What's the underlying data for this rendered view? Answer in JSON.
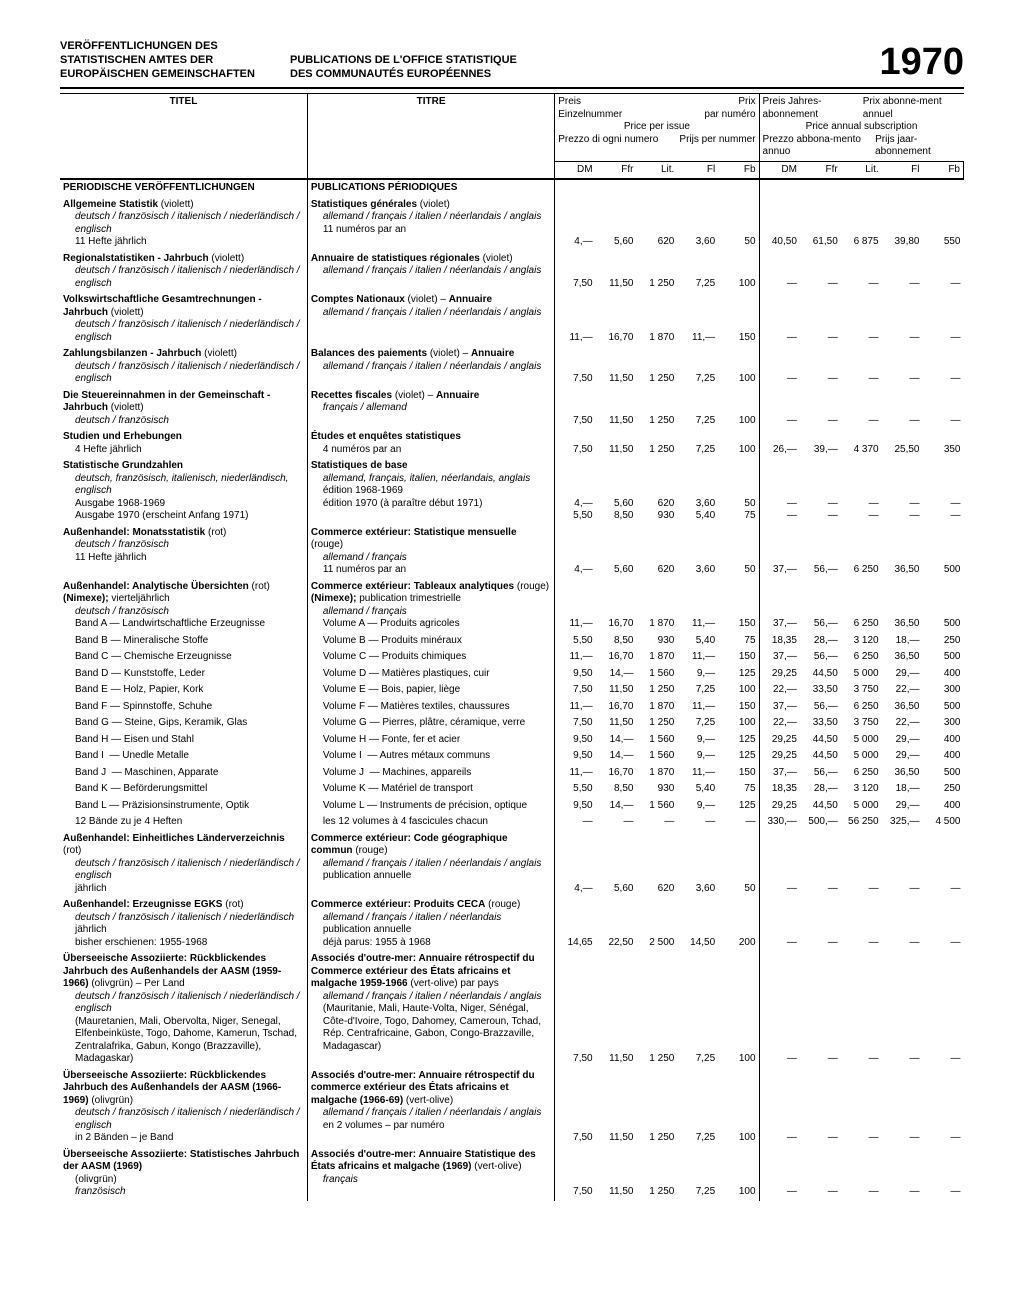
{
  "header": {
    "de": "VERÖFFENTLICHUNGEN DES STATISTISCHEN AMTES DER EUROPÄISCHEN GEMEINSCHAFTEN",
    "fr": "PUBLICATIONS DE L'OFFICE STATISTIQUE DES COMMUNAUTÉS EUROPÉENNES",
    "year": "1970"
  },
  "column_labels": {
    "titel": "TITEL",
    "titre": "TITRE",
    "price_issue_block": {
      "tl": "Preis",
      "tr": "Prix",
      "bl": "Einzelnummer",
      "br": "par numéro",
      "mid": "Price per issue",
      "bl2": "Prezzo di ogni numero",
      "br2": "Prijs per nummer"
    },
    "price_annual_block": {
      "tl": "Preis Jahres-abonnement",
      "tr": "Prix abonne-ment annuel",
      "mid": "Price annual subscription",
      "bl": "Prezzo abbona-mento annuo",
      "br": "Prijs jaar-abonnement"
    },
    "currencies": [
      "DM",
      "Ffr",
      "Lit.",
      "Fl",
      "Fb",
      "DM",
      "Ffr",
      "Lit.",
      "Fl",
      "Fb"
    ]
  },
  "section_heads": {
    "de": "PERIODISCHE VERÖFFENTLICHUNGEN",
    "fr": "PUBLICATIONS PÉRIODIQUES"
  },
  "rows": [
    {
      "type": "entry",
      "titel": "<b>Allgemeine Statistik</b> (violett)<span class='sub'>deutsch / französisch / italienisch / niederländisch / englisch</span><span class='sub2'>11 Hefte jährlich</span>",
      "titre": "<b>Statistiques générales</b> (violet)<span class='sub'>allemand / français / italien / néerlandais / anglais</span><span class='sub2'>11 numéros par an</span>",
      "p": [
        "4,—",
        "5,60",
        "620",
        "3,60",
        "50",
        "40,50",
        "61,50",
        "6 875",
        "39,80",
        "550"
      ]
    },
    {
      "type": "entry",
      "titel": "<b>Regionalstatistiken - Jahrbuch</b> (violett)<span class='sub'>deutsch / französisch / italienisch / niederländisch / englisch</span>",
      "titre": "<b>Annuaire de statistiques régionales</b> (violet)<span class='sub'>allemand / français / italien / néerlandais / anglais</span>",
      "p": [
        "7,50",
        "11,50",
        "1 250",
        "7,25",
        "100",
        "—",
        "—",
        "—",
        "—",
        "—"
      ]
    },
    {
      "type": "entry",
      "titel": "<b>Volkswirtschaftliche Gesamtrechnungen - Jahrbuch</b> (violett)<span class='sub'>deutsch / französisch / italienisch / niederländisch / englisch</span>",
      "titre": "<b>Comptes Nationaux</b> (violet) – <b>Annuaire</b><span class='sub'>allemand / français / italien / néerlandais / anglais</span>",
      "p": [
        "11,—",
        "16,70",
        "1 870",
        "11,—",
        "150",
        "—",
        "—",
        "—",
        "—",
        "—"
      ]
    },
    {
      "type": "entry",
      "titel": "<b>Zahlungsbilanzen - Jahrbuch</b> (violett)<span class='sub'>deutsch / französisch / italienisch / niederländisch / englisch</span>",
      "titre": "<b>Balances des paiements</b> (violet) – <b>Annuaire</b><span class='sub'>allemand / français / italien / néerlandais / anglais</span>",
      "p": [
        "7,50",
        "11,50",
        "1 250",
        "7,25",
        "100",
        "—",
        "—",
        "—",
        "—",
        "—"
      ]
    },
    {
      "type": "entry",
      "titel": "<b>Die Steuereinnahmen in der Gemeinschaft - Jahrbuch</b> (violett)<span class='sub'>deutsch / französisch</span>",
      "titre": "<b>Recettes fiscales</b> (violet) – <b>Annuaire</b><span class='sub'>français / allemand</span>",
      "p": [
        "7,50",
        "11,50",
        "1 250",
        "7,25",
        "100",
        "—",
        "—",
        "—",
        "—",
        "—"
      ]
    },
    {
      "type": "entry",
      "titel": "<b>Studien und Erhebungen</b><span class='sub2'>4 Hefte jährlich</span>",
      "titre": "<b>Études et enquêtes statistiques</b><span class='sub2'>4 numéros par an</span>",
      "p": [
        "7,50",
        "11,50",
        "1 250",
        "7,25",
        "100",
        "26,—",
        "39,—",
        "4 370",
        "25,50",
        "350"
      ]
    },
    {
      "type": "entry",
      "titel": "<b>Statistische Grundzahlen</b><span class='sub'>deutsch, französisch, italienisch, niederländisch, englisch</span><span class='sub2'>Ausgabe 1968-1969</span><span class='sub2'>Ausgabe 1970 (erscheint Anfang 1971)</span>",
      "titre": "<b>Statistiques de base</b><span class='sub'>allemand, français, italien, néerlandais, anglais</span><span class='sub2'>édition 1968-1969</span><span class='sub2'>édition 1970 (à paraître début 1971)</span>",
      "p": [
        "4,—<br>5,50",
        "5,60<br>8,50",
        "620<br>930",
        "3,60<br>5,40",
        "50<br>75",
        "—<br>—",
        "—<br>—",
        "—<br>—",
        "—<br>—",
        "—<br>—"
      ]
    },
    {
      "type": "entry",
      "titel": "<b>Außenhandel: Monatsstatistik</b> (rot)<span class='sub'>deutsch / französisch</span><span class='sub2'>11 Hefte jährlich</span>",
      "titre": "<b>Commerce extérieur: Statistique mensuelle</b> (rouge)<span class='sub'>allemand / français</span><span class='sub2'>11 numéros par an</span>",
      "p": [
        "4,—",
        "5,60",
        "620",
        "3,60",
        "50",
        "37,—",
        "56,—",
        "6 250",
        "36,50",
        "500"
      ]
    },
    {
      "type": "entry",
      "titel": "<b>Außenhandel: Analytische Übersichten</b> (rot) <b>(Nimexe);</b> vierteljährlich<span class='sub'>deutsch / französisch</span><span class='sub2'>Band A — Landwirtschaftliche Erzeugnisse</span>",
      "titre": "<b>Commerce extérieur: Tableaux analytiques</b> (rouge) <b>(Nimexe);</b> publication trimestrielle<span class='sub'>allemand / français</span><span class='sub2'>Volume A — Produits agricoles</span>",
      "p": [
        "11,—",
        "16,70",
        "1 870",
        "11,—",
        "150",
        "37,—",
        "56,—",
        "6 250",
        "36,50",
        "500"
      ]
    },
    {
      "type": "tight",
      "titel": "<span class='sub2'>Band B — Mineralische Stoffe</span>",
      "titre": "<span class='sub2'>Volume B — Produits minéraux</span>",
      "p": [
        "5,50",
        "8,50",
        "930",
        "5,40",
        "75",
        "18,35",
        "28,—",
        "3 120",
        "18,—",
        "250"
      ]
    },
    {
      "type": "tight",
      "titel": "<span class='sub2'>Band C — Chemische Erzeugnisse</span>",
      "titre": "<span class='sub2'>Volume C — Produits chimiques</span>",
      "p": [
        "11,—",
        "16,70",
        "1 870",
        "11,—",
        "150",
        "37,—",
        "56,—",
        "6 250",
        "36,50",
        "500"
      ]
    },
    {
      "type": "tight",
      "titel": "<span class='sub2'>Band D — Kunststoffe, Leder</span>",
      "titre": "<span class='sub2'>Volume D — Matières plastiques, cuir</span>",
      "p": [
        "9,50",
        "14,—",
        "1 560",
        "9,—",
        "125",
        "29,25",
        "44,50",
        "5 000",
        "29,—",
        "400"
      ]
    },
    {
      "type": "tight",
      "titel": "<span class='sub2'>Band E — Holz, Papier, Kork</span>",
      "titre": "<span class='sub2'>Volume E — Bois, papier, liège</span>",
      "p": [
        "7,50",
        "11,50",
        "1 250",
        "7,25",
        "100",
        "22,—",
        "33,50",
        "3 750",
        "22,—",
        "300"
      ]
    },
    {
      "type": "tight",
      "titel": "<span class='sub2'>Band F — Spinnstoffe, Schuhe</span>",
      "titre": "<span class='sub2'>Volume F — Matières textiles, chaussures</span>",
      "p": [
        "11,—",
        "16,70",
        "1 870",
        "11,—",
        "150",
        "37,—",
        "56,—",
        "6 250",
        "36,50",
        "500"
      ]
    },
    {
      "type": "tight",
      "titel": "<span class='sub2'>Band G — Steine, Gips, Keramik, Glas</span>",
      "titre": "<span class='sub2'>Volume G — Pierres, plâtre, céramique, verre</span>",
      "p": [
        "7,50",
        "11,50",
        "1 250",
        "7,25",
        "100",
        "22,—",
        "33,50",
        "3 750",
        "22,—",
        "300"
      ]
    },
    {
      "type": "tight",
      "titel": "<span class='sub2'>Band H — Eisen und Stahl</span>",
      "titre": "<span class='sub2'>Volume H — Fonte, fer et acier</span>",
      "p": [
        "9,50",
        "14,—",
        "1 560",
        "9,—",
        "125",
        "29,25",
        "44,50",
        "5 000",
        "29,—",
        "400"
      ]
    },
    {
      "type": "tight",
      "titel": "<span class='sub2'>Band I &nbsp;— Unedle Metalle</span>",
      "titre": "<span class='sub2'>Volume I &nbsp;— Autres métaux communs</span>",
      "p": [
        "9,50",
        "14,—",
        "1 560",
        "9,—",
        "125",
        "29,25",
        "44,50",
        "5 000",
        "29,—",
        "400"
      ]
    },
    {
      "type": "tight",
      "titel": "<span class='sub2'>Band J &nbsp;— Maschinen, Apparate</span>",
      "titre": "<span class='sub2'>Volume J &nbsp;— Machines, appareils</span>",
      "p": [
        "11,—",
        "16,70",
        "1 870",
        "11,—",
        "150",
        "37,—",
        "56,—",
        "6 250",
        "36,50",
        "500"
      ]
    },
    {
      "type": "tight",
      "titel": "<span class='sub2'>Band K — Beförderungsmittel</span>",
      "titre": "<span class='sub2'>Volume K — Matériel de transport</span>",
      "p": [
        "5,50",
        "8,50",
        "930",
        "5,40",
        "75",
        "18,35",
        "28,—",
        "3 120",
        "18,—",
        "250"
      ]
    },
    {
      "type": "tight",
      "titel": "<span class='sub2'>Band L — Präzisionsinstrumente, Optik</span>",
      "titre": "<span class='sub2'>Volume L — Instruments de précision, optique</span>",
      "p": [
        "9,50",
        "14,—",
        "1 560",
        "9,—",
        "125",
        "29,25",
        "44,50",
        "5 000",
        "29,—",
        "400"
      ]
    },
    {
      "type": "tight",
      "titel": "<span class='sub2'>12 Bände zu je 4 Heften</span>",
      "titre": "<span class='sub2'>les 12 volumes à 4 fascicules chacun</span>",
      "p": [
        "—",
        "—",
        "—",
        "—",
        "—",
        "330,—",
        "500,—",
        "56 250",
        "325,—",
        "4 500"
      ]
    },
    {
      "type": "entry",
      "titel": "<b>Außenhandel: Einheitliches Länderverzeichnis</b> (rot)<span class='sub'>deutsch / französisch / italienisch / niederländisch / englisch</span><span class='sub2'>jährlich</span>",
      "titre": "<b>Commerce extérieur: Code géographique commun</b> (rouge)<span class='sub'>allemand / français / italien / néerlandais / anglais</span><span class='sub2'>publication annuelle</span>",
      "p": [
        "4,—",
        "5,60",
        "620",
        "3,60",
        "50",
        "—",
        "—",
        "—",
        "—",
        "—"
      ]
    },
    {
      "type": "entry",
      "titel": "<b>Außenhandel: Erzeugnisse EGKS</b> (rot)<span class='sub'>deutsch / französisch / italienisch / niederländisch</span><span class='sub2'>jährlich</span><span class='sub2'>bisher erschienen: 1955-1968</span>",
      "titre": "<b>Commerce extérieur: Produits CECA</b> (rouge)<span class='sub'>allemand / français / italien / néerlandais</span><span class='sub2'>publication annuelle</span><span class='sub2'>déjà parus: 1955 à 1968</span>",
      "p": [
        "14,65",
        "22,50",
        "2 500",
        "14,50",
        "200",
        "—",
        "—",
        "—",
        "—",
        "—"
      ]
    },
    {
      "type": "entry",
      "titel": "<b>Überseeische Assoziierte: Rückblickendes Jahrbuch des Außenhandels der AASM (1959-1966)</b> (olivgrün) – Per Land<span class='sub'>deutsch / französisch / italienisch / niederländisch / englisch</span><span class='sub2'>(Mauretanien, Mali, Obervolta, Niger, Senegal, Elfenbeinküste, Togo, Dahome, Kamerun, Tschad, Zentralafrika, Gabun, Kongo (Brazzaville), Madagaskar)</span>",
      "titre": "<b>Associés d'outre-mer: Annuaire rétrospectif du Commerce extérieur des États africains et malgache 1959-1966</b> (vert-olive) par pays<span class='sub'>allemand / français / italien / néerlandais / anglais</span><span class='sub2'>(Mauritanie, Mali, Haute-Volta, Niger, Sénégal, Côte-d'Ivoire, Togo, Dahomey, Cameroun, Tchad, Rép. Centrafricaine, Gabon, Congo-Brazzaville, Madagascar)</span>",
      "p": [
        "7,50",
        "11,50",
        "1 250",
        "7,25",
        "100",
        "—",
        "—",
        "—",
        "—",
        "—"
      ]
    },
    {
      "type": "entry",
      "titel": "<b>Überseeische Assoziierte: Rückblickendes Jahrbuch des Außenhandels der AASM (1966-1969)</b> (olivgrün)<span class='sub'>deutsch / französisch / italienisch / niederländisch / englisch</span><span class='sub2'>in 2 Bänden – je Band</span>",
      "titre": "<b>Associés d'outre-mer: Annuaire rétrospectif du commerce extérieur des États africains et malgache (1966-69)</b> (vert-olive)<span class='sub'>allemand / français / italien / néerlandais / anglais</span><span class='sub2'>en 2 volumes – par numéro</span>",
      "p": [
        "7,50",
        "11,50",
        "1 250",
        "7,25",
        "100",
        "—",
        "—",
        "—",
        "—",
        "—"
      ]
    },
    {
      "type": "entry",
      "titel": "<b>Überseeische Assoziierte: Statistisches Jahrbuch der AASM (1969)</b><span class='sub2'>(olivgrün)</span><span class='sub'>französisch</span>",
      "titre": "<b>Associés d'outre-mer: Annuaire Statistique des États africains et malgache (1969)</b> (vert-olive)<span class='sub'>français</span>",
      "p": [
        "7,50",
        "11,50",
        "1 250",
        "7,25",
        "100",
        "—",
        "—",
        "—",
        "—",
        "—"
      ]
    }
  ]
}
